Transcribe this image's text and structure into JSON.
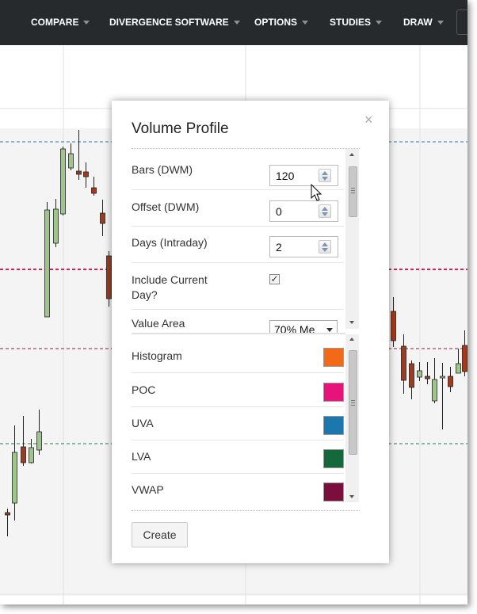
{
  "nav": {
    "items": [
      {
        "label": "COMPARE"
      },
      {
        "label": "DIVERGENCE SOFTWARE"
      },
      {
        "label": "OPTIONS"
      },
      {
        "label": "STUDIES"
      },
      {
        "label": "DRAW"
      }
    ]
  },
  "chart": {
    "colors": {
      "up": "#9fc58c",
      "down": "#a23a1d",
      "blue_line": "#2a7ab8",
      "red_line": "#d81e5b",
      "maroon_line": "#8a2040",
      "green_line": "#2f7a3a"
    }
  },
  "dialog": {
    "title": "Volume Profile",
    "close_symbol": "×",
    "settings": [
      {
        "label": "Bars (DWM)",
        "value": "120"
      },
      {
        "label": "Offset (DWM)",
        "value": "0"
      },
      {
        "label": "Days (Intraday)",
        "value": "2"
      }
    ],
    "include_current_day": {
      "label": "Include Current Day?",
      "checked": true,
      "mark": "✓"
    },
    "value_area": {
      "label": "Value Area",
      "selected": "70% Me"
    },
    "colors": [
      {
        "label": "Histogram",
        "color": "#f26a17"
      },
      {
        "label": "POC",
        "color": "#e8127c"
      },
      {
        "label": "UVA",
        "color": "#1b77ad"
      },
      {
        "label": "LVA",
        "color": "#14683b"
      },
      {
        "label": "VWAP",
        "color": "#7a0f3e"
      }
    ],
    "create_label": "Create"
  }
}
